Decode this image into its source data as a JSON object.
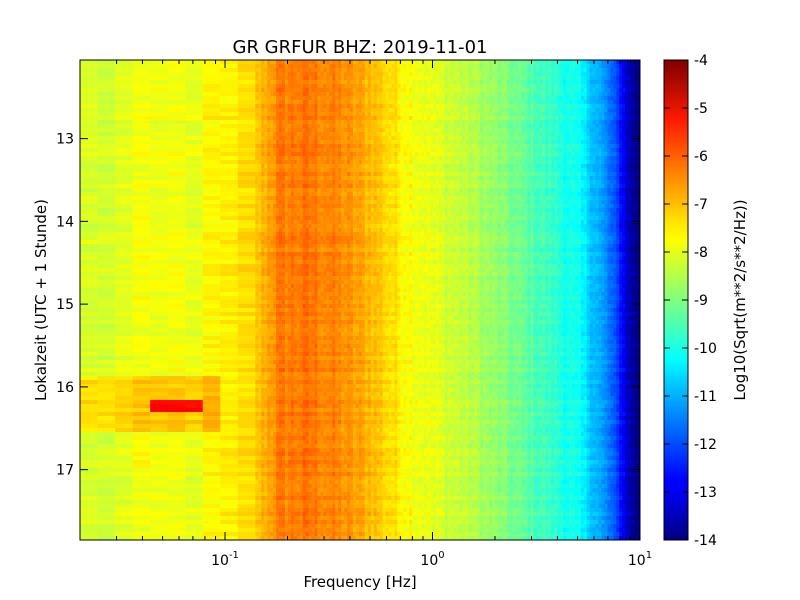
{
  "chart_data": {
    "type": "heatmap",
    "title": "GR GRFUR BHZ: 2019-11-01",
    "xlabel": "Frequency [Hz]",
    "ylabel": "Lokalzeit (UTC + 1 Stunde)",
    "colorbar_label": "Log10(Sqrt(m**2/s**2/Hz))",
    "x_scale": "log",
    "xlim": [
      0.02,
      10
    ],
    "ylim": [
      17.85,
      12.05
    ],
    "y_inverted": true,
    "x_ticks": [
      {
        "value": 0.1,
        "base": "10",
        "exp": "-1"
      },
      {
        "value": 1,
        "base": "10",
        "exp": "0"
      },
      {
        "value": 10,
        "base": "10",
        "exp": "1"
      }
    ],
    "y_ticks": [
      {
        "value": 13,
        "label": "13"
      },
      {
        "value": 14,
        "label": "14"
      },
      {
        "value": 15,
        "label": "15"
      },
      {
        "value": 16,
        "label": "16"
      },
      {
        "value": 17,
        "label": "17"
      }
    ],
    "colorbar": {
      "colormap": "jet",
      "vmin": -14,
      "vmax": -4,
      "ticks": [
        "-4",
        "-5",
        "-6",
        "-7",
        "-8",
        "-9",
        "-10",
        "-11",
        "-12",
        "-13",
        "-14"
      ]
    },
    "spectrum_profile": {
      "description_values": "approximate log10 amplitude vs frequency (Hz)",
      "freq": [
        0.02,
        0.04,
        0.06,
        0.09,
        0.13,
        0.18,
        0.25,
        0.35,
        0.5,
        0.7,
        1.0,
        1.5,
        2.0,
        3.0,
        4.0,
        5.0,
        6.0,
        7.0,
        8.0,
        9.0,
        10.0
      ],
      "level": [
        -8.2,
        -8.0,
        -7.9,
        -7.8,
        -7.5,
        -6.5,
        -6.4,
        -6.6,
        -7.0,
        -7.6,
        -8.0,
        -8.4,
        -8.8,
        -9.4,
        -9.8,
        -10.2,
        -10.8,
        -11.5,
        -12.4,
        -13.6,
        -14.0
      ]
    },
    "anomaly": {
      "time_range": [
        15.85,
        16.55
      ],
      "freq_range": [
        0.02,
        0.1
      ],
      "peak_freq_range": [
        0.04,
        0.085
      ],
      "peak_time_range": [
        16.15,
        16.3
      ],
      "peak_level": -5.3
    }
  }
}
